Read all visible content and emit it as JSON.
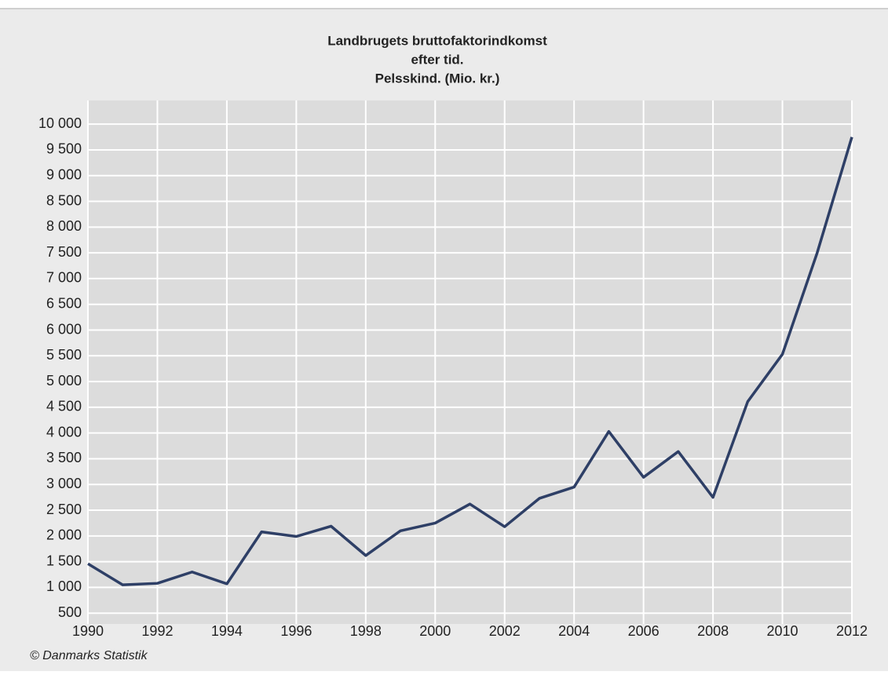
{
  "chart_data": {
    "type": "line",
    "title": [
      "Landbrugets bruttofaktorindkomst",
      "efter tid.",
      "Pelsskind. (Mio. kr.)"
    ],
    "x": [
      1990,
      1991,
      1992,
      1993,
      1994,
      1995,
      1996,
      1997,
      1998,
      1999,
      2000,
      2001,
      2002,
      2003,
      2004,
      2005,
      2006,
      2007,
      2008,
      2009,
      2010,
      2011,
      2012
    ],
    "series": [
      {
        "color": "#2e3f66",
        "values": [
          1460,
          1050,
          1080,
          1300,
          1070,
          2080,
          1990,
          2190,
          1620,
          2100,
          2250,
          2620,
          2180,
          2730,
          2950,
          4030,
          3140,
          3640,
          2750,
          4610,
          5530,
          7500,
          9750
        ]
      }
    ],
    "xlim": [
      1990,
      2012
    ],
    "xticks": [
      1990,
      1992,
      1994,
      1996,
      1998,
      2000,
      2002,
      2004,
      2006,
      2008,
      2010,
      2012
    ],
    "ylim": [
      290,
      10460
    ],
    "yticks": [
      500,
      {
        "value": 1000,
        "label": "1 000"
      },
      {
        "value": 1500,
        "label": "1 500"
      },
      {
        "value": 2000,
        "label": "2 000"
      },
      {
        "value": 2500,
        "label": "2 500"
      },
      {
        "value": 3000,
        "label": "3 000"
      },
      {
        "value": 3500,
        "label": "3 500"
      },
      {
        "value": 4000,
        "label": "4 000"
      },
      {
        "value": 4500,
        "label": "4 500"
      },
      {
        "value": 5000,
        "label": "5 000"
      },
      {
        "value": 5500,
        "label": "5 500"
      },
      {
        "value": 6000,
        "label": "6 000"
      },
      {
        "value": 6500,
        "label": "6 500"
      },
      {
        "value": 7000,
        "label": "7 000"
      },
      {
        "value": 7500,
        "label": "7 500"
      },
      {
        "value": 8000,
        "label": "8 000"
      },
      {
        "value": 8500,
        "label": "8 500"
      },
      {
        "value": 9000,
        "label": "9 000"
      },
      {
        "value": 9500,
        "label": "9 500"
      },
      {
        "value": 10000,
        "label": "10 000"
      }
    ],
    "grid": true,
    "source": "© Danmarks Statistik"
  }
}
